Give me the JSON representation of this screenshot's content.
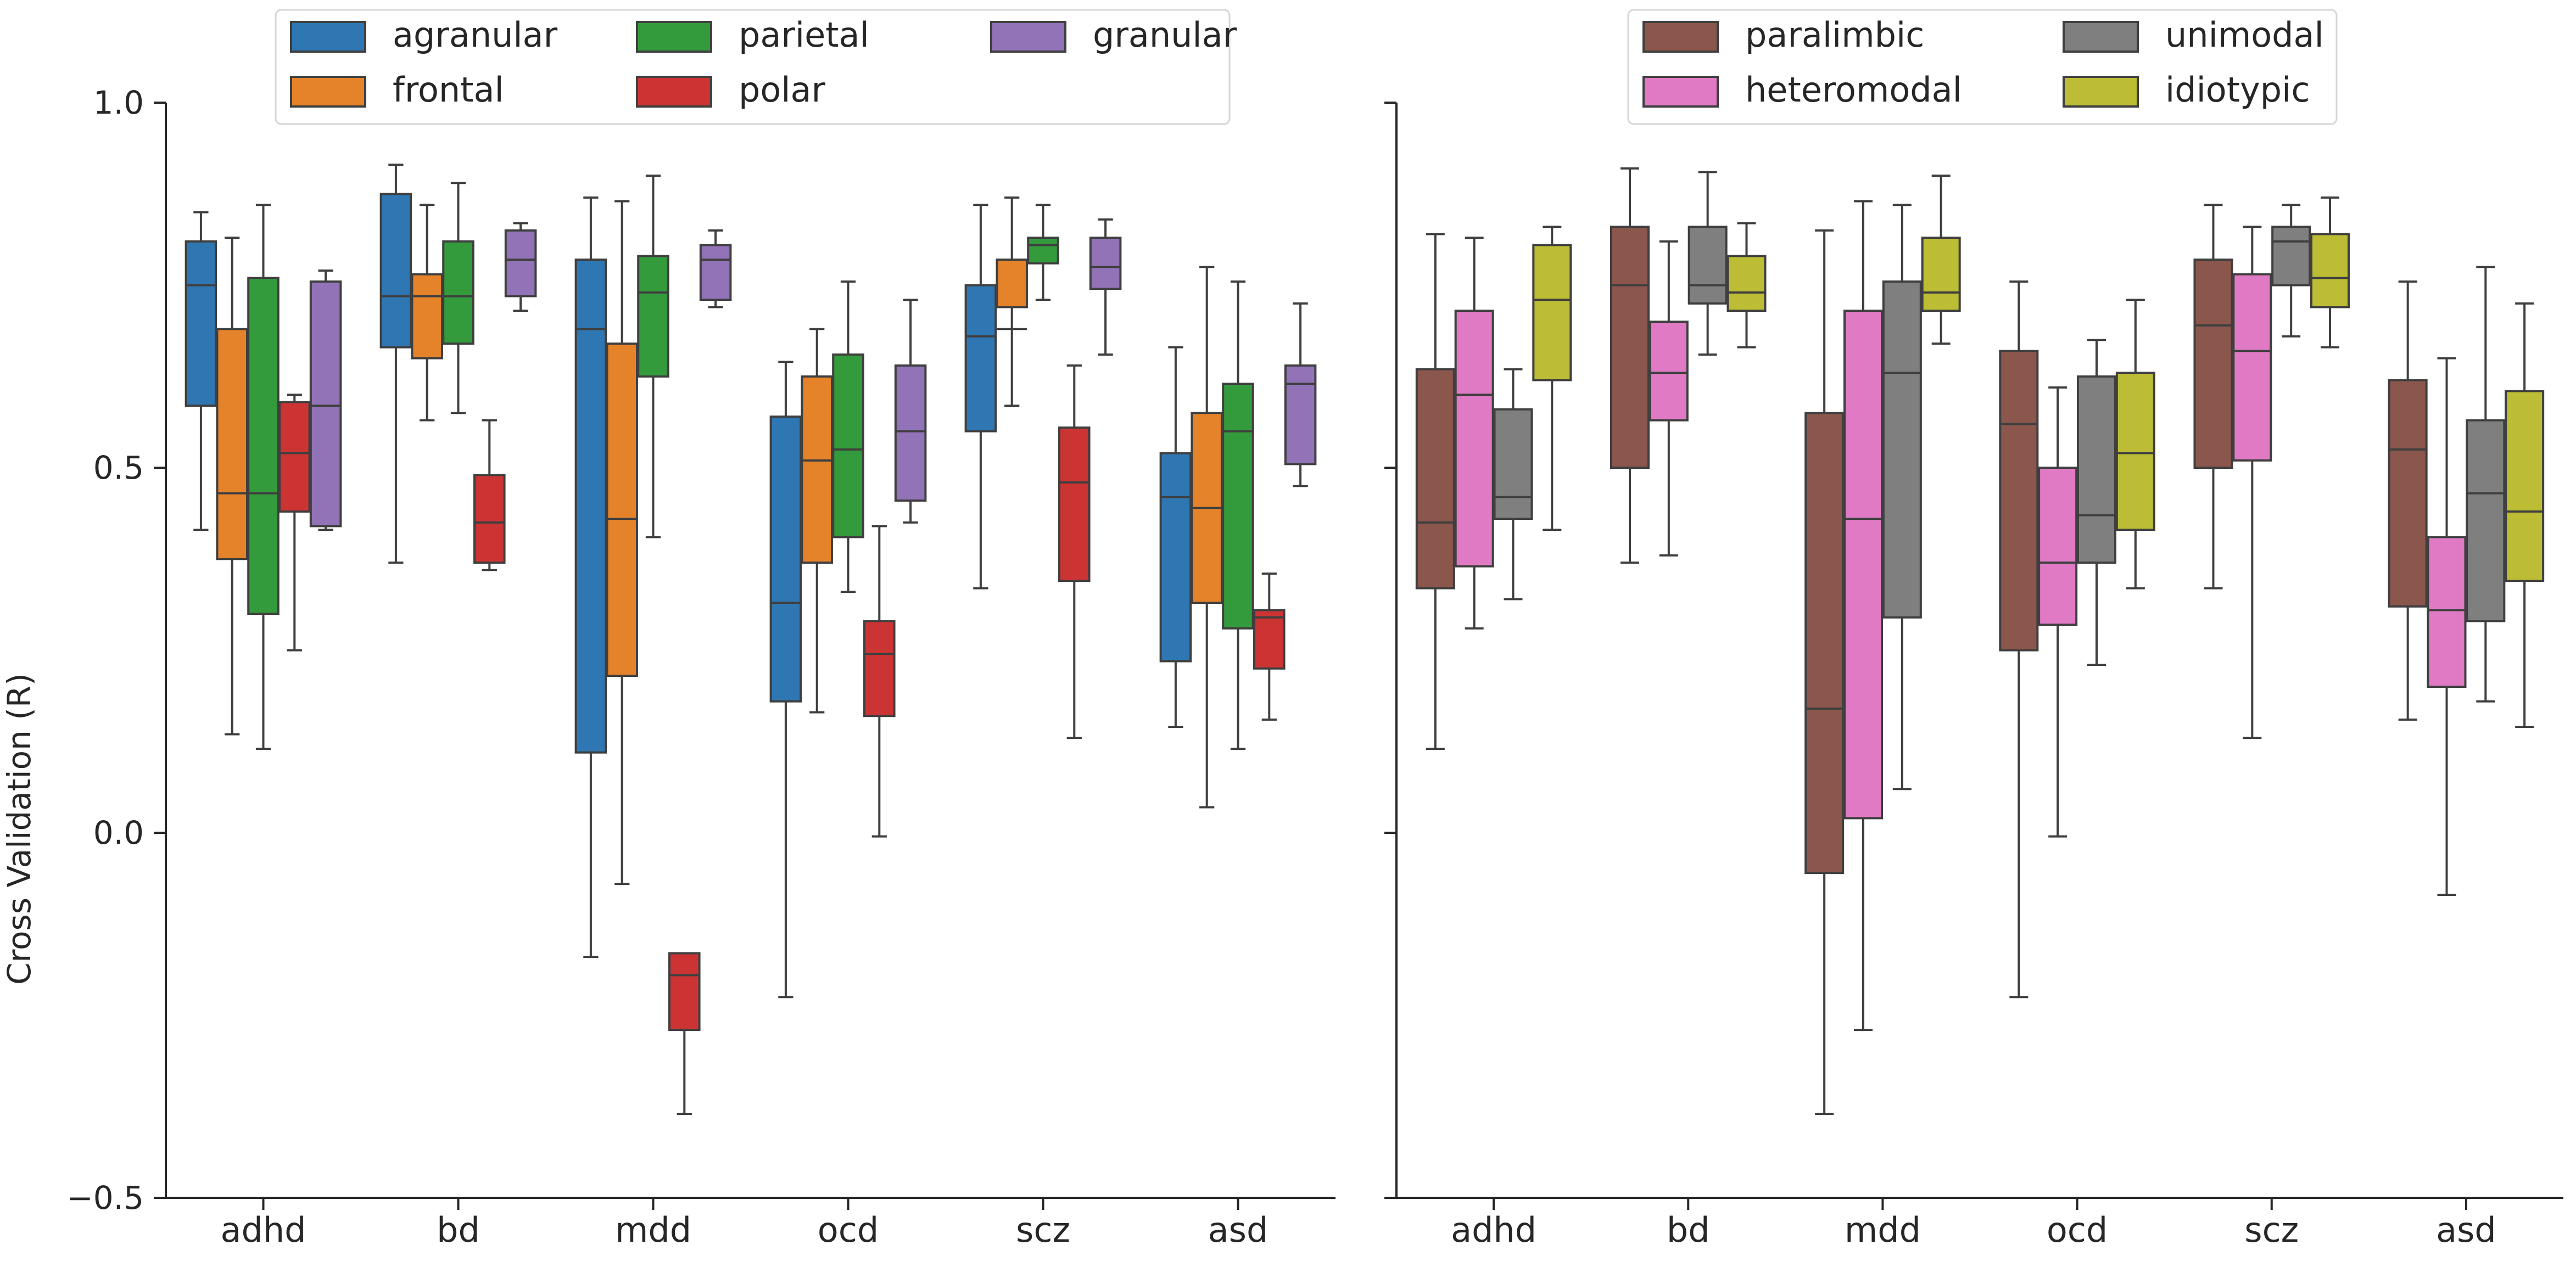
{
  "ylabel": "Cross Validation (R)",
  "chart_data": [
    {
      "type": "box",
      "panel": "left",
      "ylabel": "Cross Validation (R)",
      "ylim": [
        -0.5,
        1.0
      ],
      "yticks": [
        -0.5,
        0.0,
        0.5,
        1.0
      ],
      "ytick_labels": [
        "−0.5",
        "0.0",
        "0.5",
        "1.0"
      ],
      "categories": [
        "adhd",
        "bd",
        "mdd",
        "ocd",
        "scz",
        "asd"
      ],
      "legend": {
        "placement": "top-center",
        "ncol": 3
      },
      "series": [
        {
          "name": "agranular",
          "color": "#2f77b2",
          "boxes": [
            [
              0.415,
              0.585,
              0.75,
              0.81,
              0.85
            ],
            [
              0.37,
              0.665,
              0.735,
              0.875,
              0.915
            ],
            [
              -0.17,
              0.11,
              0.69,
              0.785,
              0.87
            ],
            [
              -0.225,
              0.18,
              0.315,
              0.57,
              0.645
            ],
            [
              0.335,
              0.55,
              0.68,
              0.75,
              0.86
            ],
            [
              0.145,
              0.235,
              0.46,
              0.52,
              0.665
            ]
          ]
        },
        {
          "name": "frontal",
          "color": "#e5832b",
          "boxes": [
            [
              0.135,
              0.375,
              0.465,
              0.69,
              0.815
            ],
            [
              0.565,
              0.65,
              0.735,
              0.765,
              0.86
            ],
            [
              -0.07,
              0.215,
              0.43,
              0.67,
              0.865
            ],
            [
              0.165,
              0.37,
              0.51,
              0.625,
              0.69
            ],
            [
              0.585,
              0.72,
              0.69,
              0.785,
              0.87
            ],
            [
              0.035,
              0.315,
              0.445,
              0.575,
              0.775
            ]
          ]
        },
        {
          "name": "parietal",
          "color": "#349b3c",
          "boxes": [
            [
              0.115,
              0.3,
              0.465,
              0.76,
              0.86
            ],
            [
              0.575,
              0.67,
              0.735,
              0.81,
              0.89
            ],
            [
              0.405,
              0.625,
              0.74,
              0.79,
              0.9
            ],
            [
              0.33,
              0.405,
              0.525,
              0.655,
              0.755
            ],
            [
              0.73,
              0.78,
              0.805,
              0.815,
              0.86
            ],
            [
              0.115,
              0.28,
              0.55,
              0.615,
              0.755
            ]
          ]
        },
        {
          "name": "polar",
          "color": "#cc3434",
          "boxes": [
            [
              0.25,
              0.44,
              0.52,
              0.59,
              0.6
            ],
            [
              0.36,
              0.37,
              0.425,
              0.49,
              0.565
            ],
            [
              -0.385,
              -0.27,
              -0.195,
              -0.165,
              -0.165
            ],
            [
              -0.005,
              0.16,
              0.245,
              0.29,
              0.42
            ],
            [
              0.13,
              0.345,
              0.48,
              0.555,
              0.64
            ],
            [
              0.155,
              0.225,
              0.295,
              0.305,
              0.355
            ]
          ]
        },
        {
          "name": "granular",
          "color": "#9273b8",
          "boxes": [
            [
              0.415,
              0.42,
              0.585,
              0.755,
              0.77
            ],
            [
              0.715,
              0.735,
              0.785,
              0.825,
              0.835
            ],
            [
              0.72,
              0.73,
              0.785,
              0.805,
              0.825
            ],
            [
              0.425,
              0.455,
              0.55,
              0.64,
              0.73
            ],
            [
              0.655,
              0.745,
              0.775,
              0.815,
              0.84
            ],
            [
              0.475,
              0.505,
              0.615,
              0.64,
              0.725
            ]
          ]
        }
      ]
    },
    {
      "type": "box",
      "panel": "right",
      "ylim": [
        -0.5,
        1.0
      ],
      "categories": [
        "adhd",
        "bd",
        "mdd",
        "ocd",
        "scz",
        "asd"
      ],
      "legend": {
        "placement": "top-center",
        "ncol": 2
      },
      "series": [
        {
          "name": "paralimbic",
          "color": "#8b564c",
          "boxes": [
            [
              0.115,
              0.335,
              0.425,
              0.635,
              0.82
            ],
            [
              0.37,
              0.5,
              0.75,
              0.83,
              0.91
            ],
            [
              -0.385,
              -0.055,
              0.17,
              0.575,
              0.825
            ],
            [
              -0.225,
              0.25,
              0.56,
              0.66,
              0.755
            ],
            [
              0.335,
              0.5,
              0.695,
              0.785,
              0.86
            ],
            [
              0.155,
              0.31,
              0.525,
              0.62,
              0.755
            ]
          ]
        },
        {
          "name": "heteromodal",
          "color": "#e07ac4",
          "boxes": [
            [
              0.28,
              0.365,
              0.6,
              0.715,
              0.815
            ],
            [
              0.38,
              0.565,
              0.63,
              0.7,
              0.81
            ],
            [
              -0.27,
              0.02,
              0.43,
              0.715,
              0.865
            ],
            [
              -0.005,
              0.285,
              0.37,
              0.5,
              0.61
            ],
            [
              0.13,
              0.51,
              0.66,
              0.765,
              0.83
            ],
            [
              -0.085,
              0.2,
              0.305,
              0.405,
              0.65
            ]
          ]
        },
        {
          "name": "unimodal",
          "color": "#7f7f7f",
          "boxes": [
            [
              0.32,
              0.43,
              0.46,
              0.58,
              0.635
            ],
            [
              0.655,
              0.725,
              0.75,
              0.83,
              0.905
            ],
            [
              0.06,
              0.295,
              0.63,
              0.755,
              0.86
            ],
            [
              0.23,
              0.37,
              0.435,
              0.625,
              0.675
            ],
            [
              0.68,
              0.75,
              0.81,
              0.83,
              0.86
            ],
            [
              0.18,
              0.29,
              0.465,
              0.565,
              0.775
            ]
          ]
        },
        {
          "name": "idiotypic",
          "color": "#bcbc35",
          "boxes": [
            [
              0.415,
              0.62,
              0.73,
              0.805,
              0.83
            ],
            [
              0.665,
              0.715,
              0.74,
              0.79,
              0.835
            ],
            [
              0.67,
              0.715,
              0.74,
              0.815,
              0.9
            ],
            [
              0.335,
              0.415,
              0.52,
              0.63,
              0.73
            ],
            [
              0.665,
              0.72,
              0.76,
              0.82,
              0.87
            ],
            [
              0.145,
              0.345,
              0.44,
              0.605,
              0.725
            ]
          ]
        }
      ]
    }
  ]
}
